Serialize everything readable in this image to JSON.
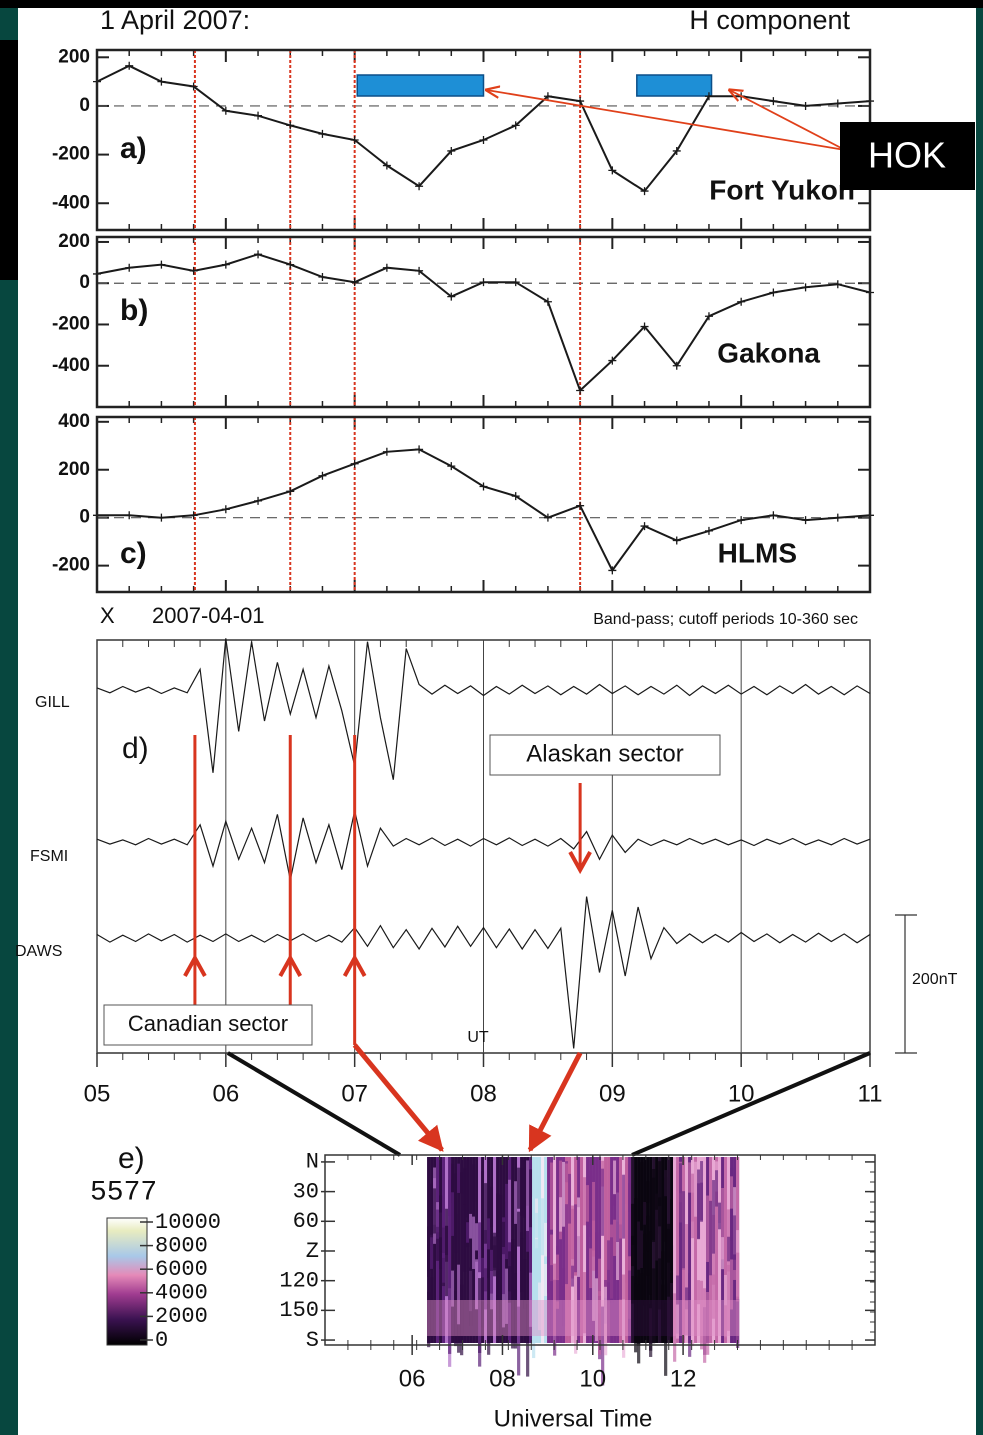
{
  "header": {
    "title": "1 April 2007:",
    "subtitle": "H component"
  },
  "callout": "HOK",
  "event_times": [
    5.76,
    6.5,
    7.0,
    8.75
  ],
  "chart_data": [
    {
      "type": "line",
      "panel": "a)",
      "station": "Fort Yukon",
      "color": "#1a1a1a",
      "x": [
        5,
        5.25,
        5.5,
        5.75,
        6,
        6.25,
        6.5,
        6.75,
        7,
        7.25,
        7.5,
        7.75,
        8,
        8.25,
        8.5,
        8.75,
        9,
        9.25,
        9.5,
        9.75,
        10,
        10.25,
        10.5,
        10.75,
        11
      ],
      "values": [
        100,
        165,
        100,
        80,
        -20,
        -40,
        -80,
        -115,
        -140,
        -245,
        -330,
        -185,
        -140,
        -80,
        40,
        20,
        -265,
        -350,
        -185,
        40,
        40,
        20,
        0,
        10,
        20
      ],
      "xlim": [
        5,
        11
      ],
      "ylim": [
        -510,
        230
      ],
      "yticks": [
        -400,
        -200,
        0,
        200
      ],
      "zero_line": true,
      "intervals": [
        [
          7.02,
          8.0
        ],
        [
          9.19,
          9.77
        ]
      ],
      "interval_color": "#1e8fd6"
    },
    {
      "type": "line",
      "panel": "b)",
      "station": "Gakona",
      "color": "#1a1a1a",
      "x": [
        5,
        5.25,
        5.5,
        5.75,
        6,
        6.25,
        6.5,
        6.75,
        7,
        7.25,
        7.5,
        7.75,
        8,
        8.25,
        8.5,
        8.75,
        9,
        9.25,
        9.5,
        9.75,
        10,
        10.25,
        10.5,
        10.75,
        11
      ],
      "values": [
        45,
        75,
        90,
        60,
        90,
        140,
        90,
        30,
        5,
        75,
        60,
        -65,
        5,
        5,
        -90,
        -520,
        -375,
        -210,
        -400,
        -160,
        -90,
        -45,
        -20,
        -5,
        -45
      ],
      "xlim": [
        5,
        11
      ],
      "ylim": [
        -600,
        224
      ],
      "yticks": [
        -400,
        -200,
        0,
        200
      ],
      "zero_line": true
    },
    {
      "type": "line",
      "panel": "c)",
      "station": "HLMS",
      "color": "#1a1a1a",
      "x": [
        5,
        5.25,
        5.5,
        5.75,
        6,
        6.25,
        6.5,
        6.75,
        7,
        7.25,
        7.5,
        7.75,
        8,
        8.25,
        8.5,
        8.75,
        9,
        9.25,
        9.5,
        9.75,
        10,
        10.25,
        10.5,
        10.75,
        11
      ],
      "values": [
        10,
        10,
        0,
        10,
        35,
        70,
        110,
        175,
        225,
        275,
        285,
        215,
        130,
        90,
        0,
        50,
        -220,
        -35,
        -95,
        -55,
        -10,
        10,
        -10,
        0,
        10
      ],
      "xlim": [
        5,
        11
      ],
      "ylim": [
        -310,
        420
      ],
      "yticks": [
        -200,
        0,
        200,
        400
      ],
      "zero_line": true
    },
    {
      "type": "line",
      "panel": "d)",
      "component": "X",
      "title": "2007-04-01",
      "note": "Band-pass; cutoff periods 10-360 sec",
      "x_label": "UT",
      "annotations": [
        "Alaskan sector",
        "Canadian sector"
      ],
      "x": [
        5,
        5.1,
        5.2,
        5.3,
        5.4,
        5.5,
        5.6,
        5.7,
        5.8,
        5.9,
        6,
        6.1,
        6.2,
        6.3,
        6.4,
        6.5,
        6.6,
        6.7,
        6.8,
        6.9,
        7,
        7.1,
        7.2,
        7.3,
        7.4,
        7.5,
        7.6,
        7.7,
        7.8,
        7.9,
        8,
        8.1,
        8.2,
        8.3,
        8.4,
        8.5,
        8.6,
        8.7,
        8.8,
        8.9,
        9,
        9.1,
        9.2,
        9.3,
        9.4,
        9.5,
        9.6,
        9.7,
        9.8,
        9.9,
        10,
        10.1,
        10.2,
        10.3,
        10.4,
        10.5,
        10.6,
        10.7,
        10.8,
        10.9,
        11
      ],
      "series": [
        {
          "name": "GILL",
          "color": "#1a1a1a",
          "values": [
            3,
            -4,
            5,
            -3,
            4,
            -5,
            3,
            -4,
            30,
            -120,
            75,
            -60,
            70,
            -45,
            40,
            -35,
            30,
            -40,
            35,
            -30,
            -110,
            70,
            -40,
            -130,
            60,
            8,
            -6,
            7,
            -5,
            6,
            -8,
            5,
            -6,
            7,
            -5,
            6,
            -7,
            5,
            -6,
            8,
            -5,
            6,
            -7,
            5,
            -6,
            7,
            -8,
            6,
            -5,
            7,
            -6,
            5,
            -7,
            6,
            -5,
            8,
            -6,
            5,
            -7,
            6,
            -5
          ]
        },
        {
          "name": "FSMI",
          "color": "#1a1a1a",
          "values": [
            4,
            -3,
            3,
            -4,
            5,
            -3,
            4,
            -4,
            25,
            -35,
            30,
            -25,
            20,
            -30,
            40,
            -55,
            35,
            -30,
            25,
            -40,
            45,
            -35,
            20,
            -6,
            5,
            -4,
            6,
            -5,
            4,
            -6,
            5,
            -4,
            6,
            -5,
            4,
            -6,
            5,
            -10,
            15,
            -25,
            10,
            -15,
            4,
            -5,
            3,
            -4,
            5,
            -3,
            4,
            -4,
            3,
            -5,
            4,
            -3,
            5,
            -4,
            3,
            -4,
            5,
            -3,
            4
          ]
        },
        {
          "name": "DAWS",
          "color": "#1a1a1a",
          "values": [
            5,
            -6,
            4,
            -5,
            6,
            -4,
            5,
            -6,
            4,
            -5,
            6,
            -5,
            4,
            -6,
            5,
            -4,
            6,
            -5,
            4,
            -6,
            15,
            -12,
            18,
            -14,
            12,
            -16,
            14,
            -13,
            17,
            -12,
            15,
            -14,
            13,
            -16,
            12,
            -15,
            14,
            -160,
            60,
            -50,
            40,
            -55,
            45,
            -30,
            15,
            -8,
            6,
            -7,
            5,
            -6,
            8,
            -5,
            6,
            -7,
            5,
            -6,
            7,
            -5,
            6,
            -7,
            5
          ]
        }
      ],
      "xlim": [
        5,
        11
      ],
      "xticks": [
        {
          "value": 5,
          "label": "05"
        },
        {
          "value": 6,
          "label": "06"
        },
        {
          "value": 7,
          "label": "07"
        },
        {
          "value": 8,
          "label": "08"
        },
        {
          "value": 9,
          "label": "09"
        },
        {
          "value": 10,
          "label": "10"
        },
        11
      ],
      "scale_bar": {
        "value": 200,
        "label": "200nT"
      }
    },
    {
      "type": "heatmap",
      "panel": "e)",
      "x_label": "Universal Time",
      "xlim": [
        4.07,
        16.25
      ],
      "xticks": [
        {
          "value": 6,
          "label": "06"
        },
        {
          "value": 8,
          "label": "08"
        },
        10,
        12
      ],
      "ylim": [
        -7,
        185
      ],
      "yticks": [
        {
          "value": 0,
          "label": "N"
        },
        30,
        60,
        {
          "value": 90,
          "label": "Z"
        },
        120,
        150,
        {
          "value": 180,
          "label": "S"
        }
      ],
      "image_xlim": [
        6.33,
        13.2
      ],
      "colorbar": {
        "label": "5577",
        "lim": [
          0,
          10000
        ],
        "ticks": [
          0,
          2000,
          4000,
          6000,
          8000,
          10000
        ]
      }
    }
  ]
}
